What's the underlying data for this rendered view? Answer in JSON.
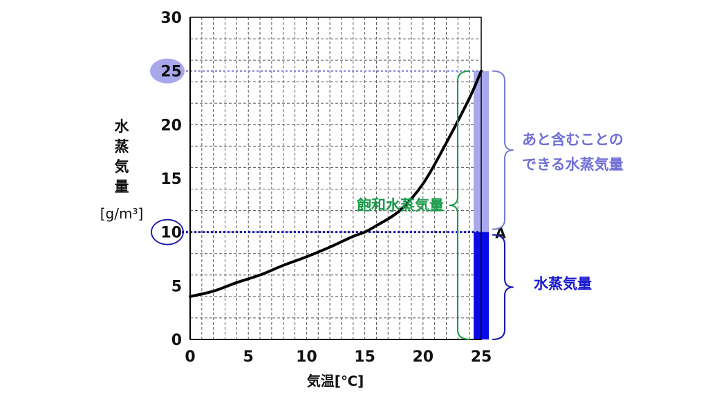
{
  "chart_data": {
    "type": "line",
    "title": "",
    "xlabel": "気温[℃]",
    "ylabel": "水蒸気量",
    "yunit": "[g/m³]",
    "xlim": [
      0,
      25
    ],
    "ylim": [
      0,
      30
    ],
    "x_ticks": [
      0,
      5,
      10,
      15,
      20,
      25
    ],
    "y_ticks": [
      0,
      5,
      10,
      15,
      20,
      25,
      30
    ],
    "grid": true,
    "series": [
      {
        "x": [
          0,
          2,
          4,
          6,
          8,
          10,
          12,
          14,
          15,
          16,
          18,
          20,
          22,
          24,
          25
        ],
        "y": [
          4.0,
          4.5,
          5.3,
          6.0,
          6.9,
          7.7,
          8.6,
          9.6,
          10.0,
          10.6,
          12.0,
          14.5,
          18.3,
          22.5,
          25.0
        ]
      }
    ],
    "highlighted_y_values": [
      25,
      10
    ],
    "point_label": "A",
    "point": {
      "x": 25,
      "y": 10
    },
    "bar": {
      "x": 25,
      "vapor": 10,
      "saturation": 25
    },
    "annotations": {
      "remaining": [
        "あと含むことの",
        "できる水蒸気量"
      ],
      "vapor": "水蒸気量",
      "saturation": "飽和水蒸気量"
    },
    "colors": {
      "curve": "#000000",
      "remaining": "#a8a8ec",
      "vapor": "#0a0ae6",
      "saturation_brace": "#1a9a4a",
      "line25": "#7a7ad8",
      "line10": "#1515b0"
    }
  }
}
